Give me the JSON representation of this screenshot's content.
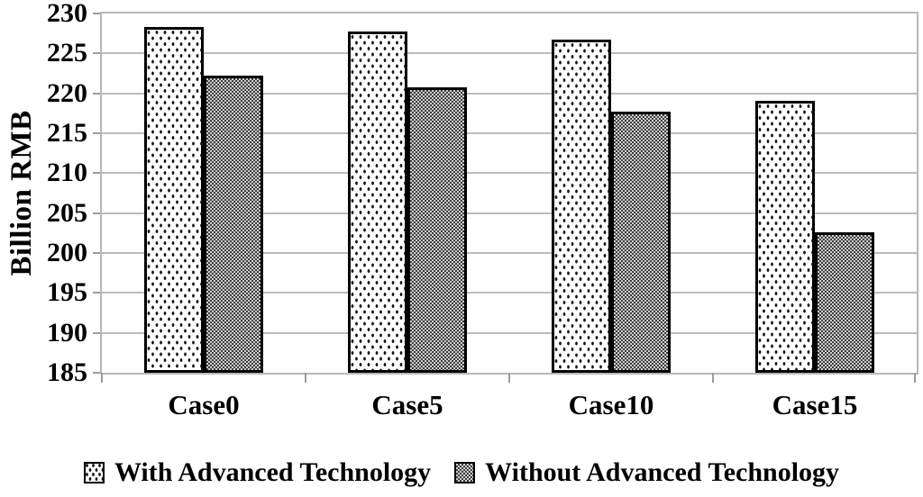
{
  "chart_data": {
    "type": "bar",
    "title": "",
    "xlabel": "",
    "ylabel": "Billion RMB",
    "categories": [
      "Case0",
      "Case5",
      "Case10",
      "Case15"
    ],
    "series": [
      {
        "name": "With Advanced Technology",
        "pattern": "dots",
        "values": [
          228.3,
          227.8,
          226.7,
          219.1
        ]
      },
      {
        "name": "Without Advanced Technology",
        "pattern": "checker",
        "values": [
          222.2,
          220.7,
          217.7,
          202.6
        ]
      }
    ],
    "ylim": [
      185,
      230
    ],
    "yticks": [
      230,
      225,
      220,
      215,
      210,
      205,
      200,
      195,
      190,
      185
    ],
    "ytick_step": 5,
    "grid": true,
    "legend_position": "bottom",
    "colors": {
      "grid": "#bcbcbc",
      "axis": "#b8b8b8",
      "bar_border": "#000000",
      "text": "#000000",
      "checker_dark": "#3f3f3f",
      "checker_light": "#cdcdcd",
      "dot_fill": "#ffffff"
    }
  }
}
